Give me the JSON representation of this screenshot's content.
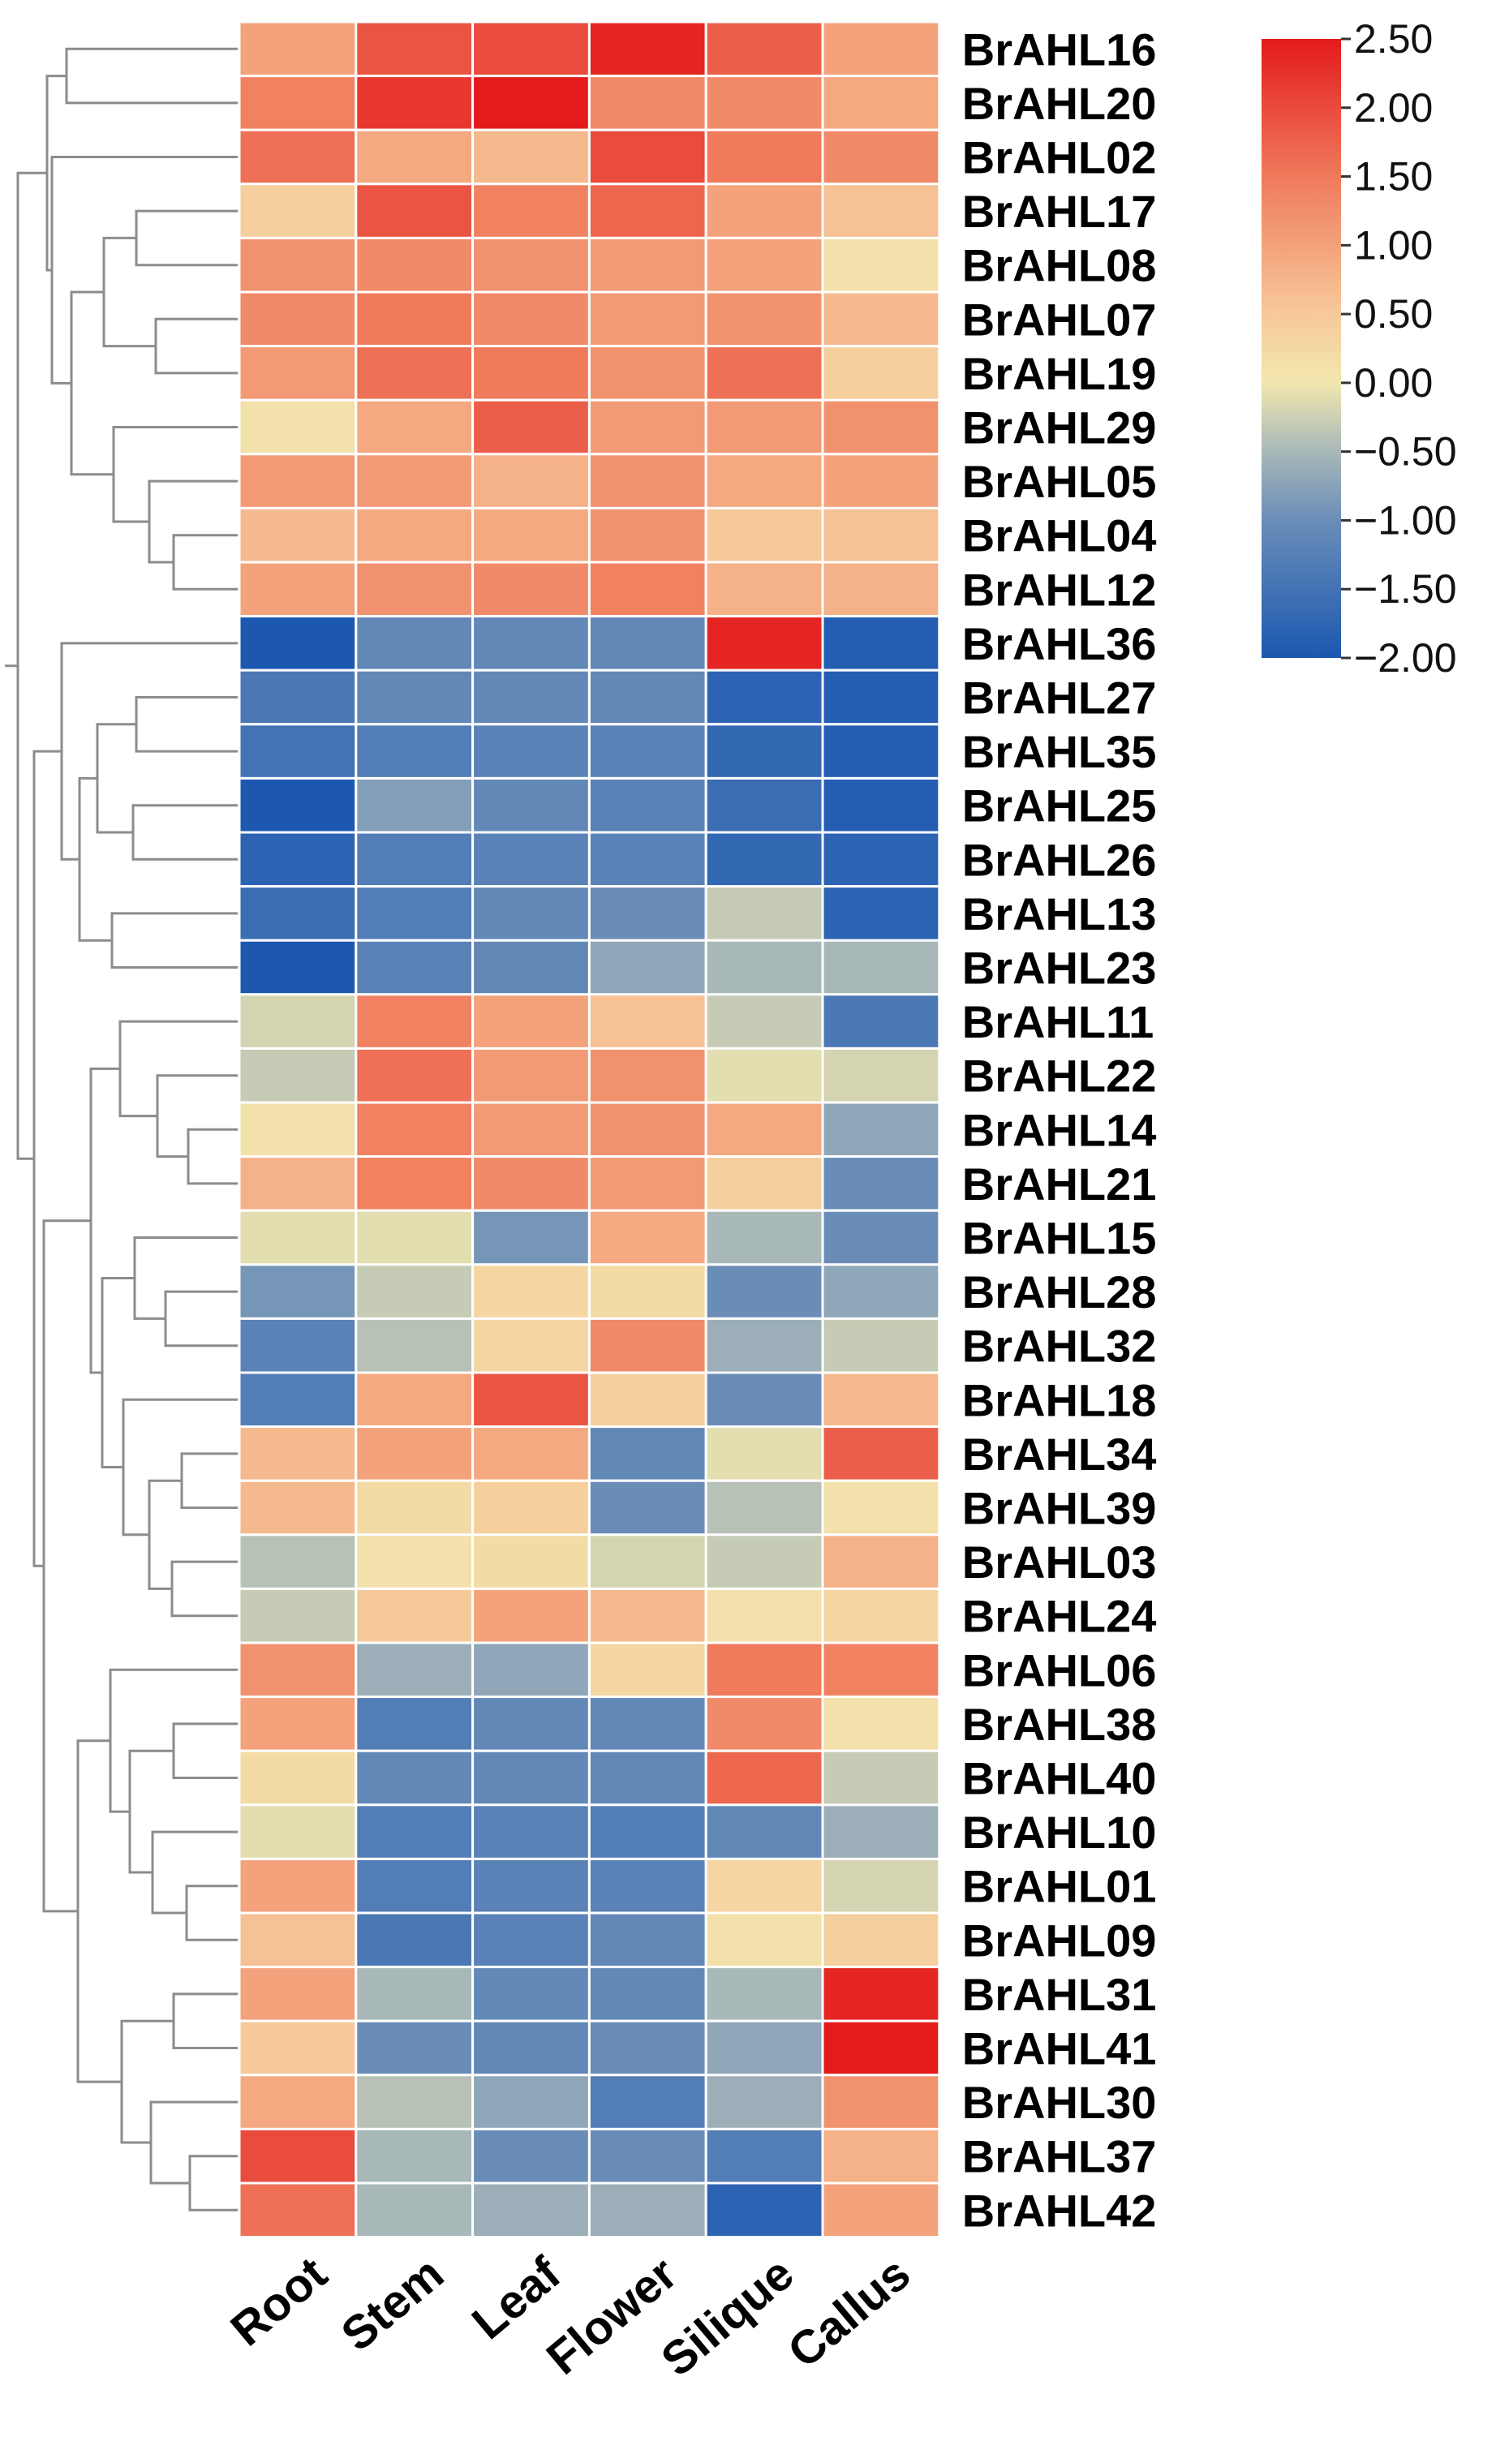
{
  "chart_data": {
    "type": "heatmap",
    "title": "",
    "columns": [
      "Root",
      "Stem",
      "Leaf",
      "Flower",
      "Silique",
      "Callus"
    ],
    "rows": [
      "BrAHL16",
      "BrAHL20",
      "BrAHL02",
      "BrAHL17",
      "BrAHL08",
      "BrAHL07",
      "BrAHL19",
      "BrAHL29",
      "BrAHL05",
      "BrAHL04",
      "BrAHL12",
      "BrAHL36",
      "BrAHL27",
      "BrAHL35",
      "BrAHL25",
      "BrAHL26",
      "BrAHL13",
      "BrAHL23",
      "BrAHL11",
      "BrAHL22",
      "BrAHL14",
      "BrAHL21",
      "BrAHL15",
      "BrAHL28",
      "BrAHL32",
      "BrAHL18",
      "BrAHL34",
      "BrAHL39",
      "BrAHL03",
      "BrAHL24",
      "BrAHL06",
      "BrAHL38",
      "BrAHL40",
      "BrAHL10",
      "BrAHL01",
      "BrAHL09",
      "BrAHL31",
      "BrAHL41",
      "BrAHL30",
      "BrAHL37",
      "BrAHL42"
    ],
    "values": [
      [
        1.0,
        1.9,
        2.0,
        2.4,
        1.8,
        1.0
      ],
      [
        1.4,
        2.2,
        2.5,
        1.3,
        1.3,
        0.9
      ],
      [
        1.6,
        0.9,
        0.7,
        2.0,
        1.5,
        1.3
      ],
      [
        0.4,
        1.9,
        1.4,
        1.7,
        1.0,
        0.6
      ],
      [
        1.2,
        1.3,
        1.2,
        1.1,
        1.0,
        0.1
      ],
      [
        1.3,
        1.5,
        1.3,
        1.1,
        1.2,
        0.7
      ],
      [
        1.1,
        1.6,
        1.5,
        1.2,
        1.6,
        0.4
      ],
      [
        0.1,
        0.9,
        1.8,
        1.1,
        1.1,
        1.2
      ],
      [
        1.1,
        1.1,
        0.8,
        1.2,
        0.9,
        1.0
      ],
      [
        0.7,
        0.9,
        0.9,
        1.2,
        0.5,
        0.6
      ],
      [
        1.0,
        1.2,
        1.3,
        1.4,
        0.8,
        0.8
      ],
      [
        -2.0,
        -1.1,
        -1.1,
        -1.1,
        2.4,
        -1.9
      ],
      [
        -1.4,
        -1.1,
        -1.1,
        -1.1,
        -1.8,
        -1.9
      ],
      [
        -1.5,
        -1.3,
        -1.2,
        -1.2,
        -1.7,
        -1.9
      ],
      [
        -2.0,
        -0.8,
        -1.1,
        -1.2,
        -1.6,
        -1.9
      ],
      [
        -1.8,
        -1.3,
        -1.2,
        -1.2,
        -1.7,
        -1.8
      ],
      [
        -1.6,
        -1.3,
        -1.1,
        -1.0,
        -0.3,
        -1.8
      ],
      [
        -2.0,
        -1.2,
        -1.1,
        -0.7,
        -0.5,
        -0.5
      ],
      [
        -0.2,
        1.4,
        1.0,
        0.6,
        -0.3,
        -1.4
      ],
      [
        -0.3,
        1.6,
        1.1,
        1.2,
        -0.1,
        -0.2
      ],
      [
        0.1,
        1.4,
        1.1,
        1.2,
        0.9,
        -0.7
      ],
      [
        0.8,
        1.4,
        1.3,
        1.1,
        0.4,
        -1.0
      ],
      [
        -0.1,
        -0.1,
        -0.9,
        0.9,
        -0.5,
        -1.0
      ],
      [
        -0.9,
        -0.3,
        0.3,
        0.2,
        -1.0,
        -0.7
      ],
      [
        -1.2,
        -0.4,
        0.3,
        1.3,
        -0.6,
        -0.3
      ],
      [
        -1.3,
        0.9,
        1.9,
        0.4,
        -1.0,
        0.7
      ],
      [
        0.7,
        1.0,
        0.9,
        -1.1,
        -0.1,
        1.8
      ],
      [
        0.7,
        0.2,
        0.4,
        -1.0,
        -0.4,
        0.1
      ],
      [
        -0.4,
        0.1,
        0.2,
        -0.2,
        -0.3,
        0.8
      ],
      [
        -0.3,
        0.5,
        1.0,
        0.7,
        0.1,
        0.3
      ],
      [
        1.2,
        -0.6,
        -0.7,
        0.3,
        1.5,
        1.4
      ],
      [
        1.0,
        -1.3,
        -1.1,
        -1.1,
        1.3,
        0.1
      ],
      [
        0.2,
        -1.1,
        -1.1,
        -1.1,
        1.7,
        -0.3
      ],
      [
        -0.1,
        -1.3,
        -1.2,
        -1.3,
        -1.1,
        -0.6
      ],
      [
        1.0,
        -1.3,
        -1.2,
        -1.2,
        0.3,
        -0.2
      ],
      [
        0.6,
        -1.4,
        -1.2,
        -1.1,
        0.1,
        0.4
      ],
      [
        1.0,
        -0.5,
        -1.1,
        -1.1,
        -0.5,
        2.4
      ],
      [
        0.5,
        -1.0,
        -1.1,
        -1.0,
        -0.7,
        2.5
      ],
      [
        0.9,
        -0.4,
        -0.7,
        -1.3,
        -0.6,
        1.2
      ],
      [
        2.0,
        -0.5,
        -1.0,
        -1.0,
        -1.3,
        0.8
      ],
      [
        1.6,
        -0.5,
        -0.6,
        -0.6,
        -1.8,
        1.0
      ]
    ],
    "color_scale": {
      "min": -2.0,
      "max": 2.5,
      "stops": [
        {
          "value": -2.0,
          "color": "#1c58b0"
        },
        {
          "value": -1.0,
          "color": "#6a8db8"
        },
        {
          "value": -0.5,
          "color": "#a8b8b8"
        },
        {
          "value": 0.0,
          "color": "#f1e7ae"
        },
        {
          "value": 0.5,
          "color": "#f7c99a"
        },
        {
          "value": 1.5,
          "color": "#ef7a5c"
        },
        {
          "value": 2.5,
          "color": "#e31b1b"
        }
      ],
      "ticks": [
        "2.50",
        "2.00",
        "1.50",
        "1.00",
        "0.50",
        "0.00",
        "−0.50",
        "−1.00",
        "−1.50",
        "−2.00"
      ],
      "tick_values": [
        2.5,
        2.0,
        1.5,
        1.0,
        0.5,
        0.0,
        -0.5,
        -1.0,
        -1.5,
        -2.0
      ]
    },
    "dendrogram": "row clustering tree on left"
  },
  "colors": {
    "background": "#ffffff",
    "cell_border": "#ffffff",
    "tree_line": "#8c8c8c",
    "label_text": "#000000"
  }
}
